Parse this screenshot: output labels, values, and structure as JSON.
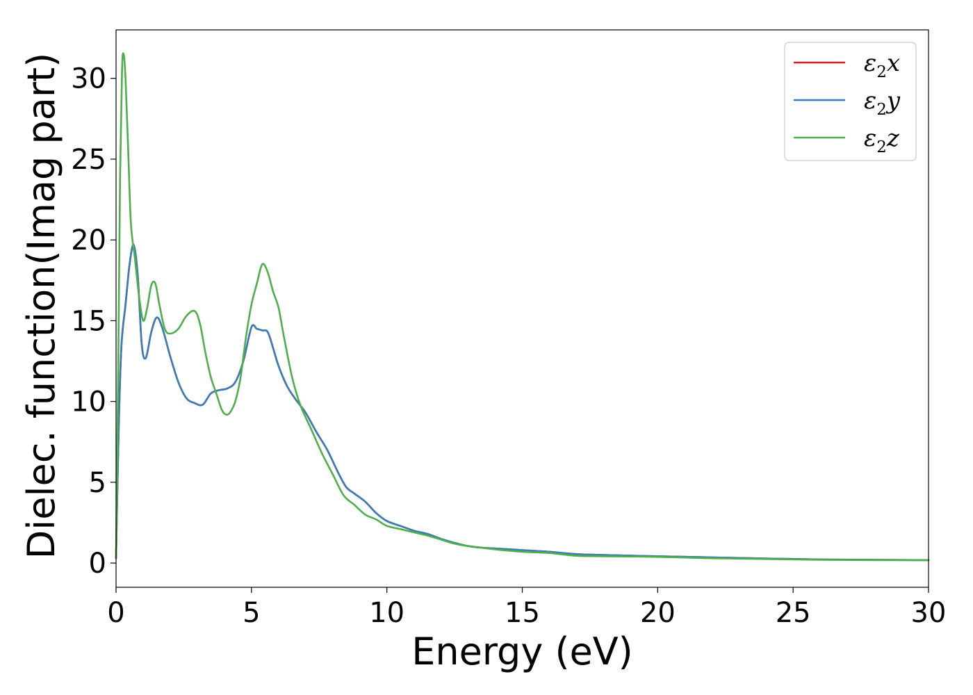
{
  "chart_data": {
    "type": "line",
    "xlabel": "Energy (eV)",
    "ylabel": "Dielec. function(Imag part)",
    "xlim": [
      0,
      30
    ],
    "ylim": [
      -1.5,
      33.0
    ],
    "xticks": [
      0,
      5,
      10,
      15,
      20,
      25,
      30
    ],
    "yticks": [
      0,
      5,
      10,
      15,
      20,
      25,
      30
    ],
    "grid": false,
    "legend_position": "top-right",
    "series": [
      {
        "name": "ε2x",
        "legend_main": "ε",
        "legend_sub": "2",
        "legend_suffix": "x",
        "color": "#e41a1c",
        "x": [
          0,
          0.1,
          0.2,
          0.35,
          0.5,
          0.65,
          0.8,
          0.95,
          1.1,
          1.3,
          1.5,
          1.7,
          2.0,
          2.3,
          2.6,
          2.9,
          3.2,
          3.5,
          3.8,
          4.1,
          4.4,
          4.7,
          5.0,
          5.2,
          5.4,
          5.6,
          5.8,
          6.0,
          6.3,
          6.6,
          7.0,
          7.4,
          7.8,
          8.2,
          8.5,
          8.8,
          9.2,
          9.6,
          10.0,
          10.5,
          11.0,
          11.5,
          12.0,
          12.5,
          13.0,
          13.5,
          14.0,
          15.0,
          16.0,
          17.0,
          18.0,
          20.0,
          22.0,
          24.0,
          26.0,
          28.0,
          30.0
        ],
        "y": [
          0.3,
          8.5,
          13.5,
          16.0,
          18.5,
          19.7,
          17.8,
          13.5,
          12.7,
          14.3,
          15.2,
          14.6,
          12.8,
          11.2,
          10.2,
          9.9,
          9.8,
          10.5,
          10.7,
          10.8,
          11.2,
          12.5,
          14.6,
          14.5,
          14.4,
          14.3,
          13.3,
          12.2,
          11.0,
          10.2,
          9.3,
          8.1,
          7.0,
          5.6,
          4.7,
          4.3,
          3.8,
          3.1,
          2.6,
          2.3,
          2.0,
          1.8,
          1.5,
          1.25,
          1.05,
          0.95,
          0.9,
          0.8,
          0.7,
          0.55,
          0.5,
          0.42,
          0.35,
          0.28,
          0.22,
          0.2,
          0.18
        ]
      },
      {
        "name": "ε2y",
        "legend_main": "ε",
        "legend_sub": "2",
        "legend_suffix": "y",
        "color": "#377eb8",
        "x": [
          0,
          0.1,
          0.2,
          0.35,
          0.5,
          0.65,
          0.8,
          0.95,
          1.1,
          1.3,
          1.5,
          1.7,
          2.0,
          2.3,
          2.6,
          2.9,
          3.2,
          3.5,
          3.8,
          4.1,
          4.4,
          4.7,
          5.0,
          5.2,
          5.4,
          5.6,
          5.8,
          6.0,
          6.3,
          6.6,
          7.0,
          7.4,
          7.8,
          8.2,
          8.5,
          8.8,
          9.2,
          9.6,
          10.0,
          10.5,
          11.0,
          11.5,
          12.0,
          12.5,
          13.0,
          13.5,
          14.0,
          15.0,
          16.0,
          17.0,
          18.0,
          20.0,
          22.0,
          24.0,
          26.0,
          28.0,
          30.0
        ],
        "y": [
          0.3,
          8.5,
          13.5,
          16.0,
          18.5,
          19.7,
          17.8,
          13.5,
          12.7,
          14.3,
          15.2,
          14.6,
          12.8,
          11.2,
          10.2,
          9.9,
          9.8,
          10.5,
          10.7,
          10.8,
          11.2,
          12.5,
          14.6,
          14.5,
          14.4,
          14.3,
          13.3,
          12.2,
          11.0,
          10.2,
          9.3,
          8.1,
          7.0,
          5.6,
          4.7,
          4.3,
          3.8,
          3.1,
          2.6,
          2.3,
          2.0,
          1.8,
          1.5,
          1.25,
          1.05,
          0.95,
          0.9,
          0.8,
          0.7,
          0.55,
          0.5,
          0.42,
          0.35,
          0.28,
          0.22,
          0.2,
          0.18
        ]
      },
      {
        "name": "ε2z",
        "legend_main": "ε",
        "legend_sub": "2",
        "legend_suffix": "z",
        "color": "#4daf4a",
        "x": [
          0,
          0.08,
          0.15,
          0.22,
          0.28,
          0.35,
          0.45,
          0.55,
          0.7,
          0.85,
          1.0,
          1.15,
          1.3,
          1.45,
          1.6,
          1.8,
          2.0,
          2.3,
          2.6,
          2.9,
          3.1,
          3.3,
          3.5,
          3.7,
          3.9,
          4.05,
          4.2,
          4.4,
          4.6,
          4.8,
          5.0,
          5.2,
          5.4,
          5.6,
          5.8,
          6.0,
          6.2,
          6.5,
          6.8,
          7.2,
          7.6,
          8.0,
          8.4,
          8.8,
          9.2,
          9.6,
          10.0,
          10.5,
          11.0,
          11.5,
          12.0,
          12.5,
          13.0,
          14.0,
          15.0,
          16.0,
          17.0,
          18.0,
          20.0,
          22.0,
          24.0,
          26.0,
          28.0,
          30.0
        ],
        "y": [
          0.3,
          12.0,
          24.0,
          30.5,
          31.5,
          30.0,
          25.5,
          21.0,
          18.8,
          16.5,
          15.0,
          15.8,
          17.2,
          17.3,
          16.0,
          14.5,
          14.2,
          14.5,
          15.3,
          15.6,
          14.8,
          13.0,
          11.5,
          10.5,
          9.5,
          9.2,
          9.3,
          10.0,
          11.5,
          14.0,
          16.0,
          17.3,
          18.5,
          18.0,
          16.8,
          15.8,
          14.0,
          11.5,
          9.8,
          8.3,
          6.8,
          5.5,
          4.2,
          3.6,
          3.0,
          2.7,
          2.3,
          2.1,
          1.9,
          1.7,
          1.45,
          1.2,
          1.05,
          0.85,
          0.7,
          0.62,
          0.45,
          0.42,
          0.38,
          0.3,
          0.25,
          0.2,
          0.18,
          0.18
        ]
      }
    ]
  }
}
